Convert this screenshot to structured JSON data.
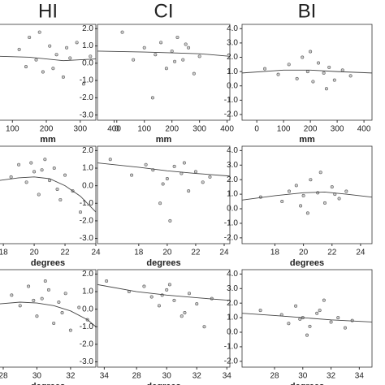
{
  "chart_data": [
    {
      "type": "scatter",
      "title": "HI",
      "x_label": "mm",
      "xlim": [
        61,
        346
      ],
      "xticks": [
        100,
        200,
        300,
        400
      ],
      "ylim": [
        -3.3,
        2.25
      ],
      "x": [
        120,
        150,
        170,
        190,
        210,
        230,
        250,
        270,
        290,
        310,
        330,
        180,
        220,
        260,
        140
      ],
      "values": [
        0.8,
        1.5,
        0.2,
        -0.5,
        1.0,
        0.5,
        -0.8,
        0.3,
        1.2,
        -1.2,
        0.4,
        1.8,
        -0.3,
        0.9,
        -0.2
      ],
      "curve_x": [
        61,
        150,
        250,
        346
      ],
      "curve_values": [
        0.4,
        0.35,
        0.15,
        0.25
      ]
    },
    {
      "type": "scatter",
      "title": "CI",
      "x_label": "mm",
      "xlim": [
        -70,
        410
      ],
      "xticks": [
        0,
        100,
        200,
        300,
        400
      ],
      "ylim": [
        -3.3,
        2.25
      ],
      "yticks": [
        {
          "value": 2,
          "label": "2.0"
        },
        {
          "value": 1,
          "label": "1.0"
        },
        {
          "value": 0,
          "label": "0.0"
        },
        {
          "value": -1,
          "label": "-1.0"
        },
        {
          "value": -2,
          "label": "-2.0"
        },
        {
          "value": -3,
          "label": "-3.0"
        }
      ],
      "x": [
        20,
        60,
        100,
        140,
        160,
        180,
        200,
        220,
        240,
        260,
        280,
        300,
        130,
        210,
        250
      ],
      "values": [
        1.8,
        0.2,
        0.9,
        0.5,
        1.2,
        -0.3,
        0.7,
        1.5,
        0.2,
        0.9,
        -0.6,
        0.4,
        -2.0,
        0.1,
        1.1
      ],
      "curve_x": [
        -70,
        100,
        200,
        300,
        410
      ],
      "curve_values": [
        0.7,
        0.65,
        0.6,
        0.55,
        0.4
      ]
    },
    {
      "type": "scatter",
      "title": "BI",
      "x_label": "mm",
      "xlim": [
        -55,
        430
      ],
      "xticks": [
        0,
        100,
        200,
        300,
        400
      ],
      "ylim": [
        -2.4,
        4.3
      ],
      "yticks": [
        {
          "value": 4,
          "label": "4.0"
        },
        {
          "value": 3,
          "label": "3.0"
        },
        {
          "value": 2,
          "label": "2.0"
        },
        {
          "value": 1,
          "label": "1.0"
        },
        {
          "value": 0,
          "label": "0.0"
        },
        {
          "value": -1,
          "label": "-1.0"
        },
        {
          "value": -2,
          "label": "-2.0"
        }
      ],
      "x": [
        30,
        80,
        120,
        150,
        170,
        190,
        210,
        230,
        250,
        270,
        290,
        320,
        350,
        200,
        260
      ],
      "values": [
        1.2,
        0.8,
        1.5,
        0.5,
        2.0,
        1.0,
        0.3,
        1.6,
        0.9,
        1.3,
        0.4,
        1.1,
        0.7,
        2.4,
        -0.2
      ],
      "curve_x": [
        -55,
        100,
        200,
        300,
        430
      ],
      "curve_values": [
        0.9,
        1.1,
        1.1,
        1.0,
        0.9
      ]
    },
    {
      "type": "scatter",
      "x_label": "degrees",
      "xlim": [
        17.73,
        24.0
      ],
      "xticks": [
        18,
        20,
        22,
        24
      ],
      "ylim": [
        -3.3,
        2.25
      ],
      "x": [
        18.5,
        19,
        19.5,
        20,
        20.3,
        20.7,
        21,
        21.3,
        21.7,
        22,
        22.5,
        23,
        20.5,
        21.5,
        19.8
      ],
      "values": [
        0.5,
        1.2,
        0.2,
        0.8,
        -0.5,
        1.5,
        0.3,
        1.0,
        -0.8,
        0.6,
        -0.3,
        -1.5,
        0.9,
        -0.2,
        1.3
      ],
      "curve_x": [
        17.73,
        19,
        20,
        21,
        22,
        23,
        24
      ],
      "curve_values": [
        0.3,
        0.45,
        0.5,
        0.4,
        0,
        -0.6,
        -1.5
      ]
    },
    {
      "type": "scatter",
      "x_label": "degrees",
      "xlim": [
        15.1,
        24.4
      ],
      "xticks": [
        18,
        20,
        22,
        24
      ],
      "ylim": [
        -3.3,
        2.25
      ],
      "yticks": [
        {
          "value": 2,
          "label": "2.0"
        },
        {
          "value": 1,
          "label": "1.0"
        },
        {
          "value": 0,
          "label": "0.0"
        },
        {
          "value": -1,
          "label": "-1.0"
        },
        {
          "value": -2,
          "label": "-2.0"
        },
        {
          "value": -3,
          "label": "-3.0"
        }
      ],
      "x": [
        16,
        17.5,
        18.5,
        19,
        19.5,
        20,
        20.5,
        21,
        21.5,
        22,
        22.5,
        23,
        20.2,
        21.2,
        19.7
      ],
      "values": [
        1.5,
        0.6,
        1.2,
        0.9,
        -1.0,
        0.4,
        1.1,
        0.7,
        -0.3,
        0.8,
        0.2,
        0.5,
        -2.0,
        1.3,
        0.1
      ],
      "curve_x": [
        15.1,
        18,
        20,
        22,
        24.4
      ],
      "curve_values": [
        1.3,
        1.05,
        0.85,
        0.7,
        0.55
      ]
    },
    {
      "type": "scatter",
      "x_label": "degrees",
      "xlim": [
        15.7,
        24.8
      ],
      "xticks": [
        18,
        20,
        22,
        24
      ],
      "ylim": [
        -2.4,
        4.3
      ],
      "yticks": [
        {
          "value": 4,
          "label": "4.0"
        },
        {
          "value": 3,
          "label": "3.0"
        },
        {
          "value": 2,
          "label": "2.0"
        },
        {
          "value": 1,
          "label": "1.0"
        },
        {
          "value": 0,
          "label": "0.0"
        },
        {
          "value": -1,
          "label": "-1.0"
        },
        {
          "value": -2,
          "label": "-2.0"
        }
      ],
      "x": [
        17,
        18.5,
        19,
        19.5,
        20,
        20.5,
        21,
        21.5,
        22,
        22.5,
        23,
        20.3,
        21.2,
        19.8,
        22.2
      ],
      "values": [
        0.8,
        0.5,
        1.2,
        1.6,
        0.9,
        2.0,
        1.1,
        0.4,
        1.5,
        0.7,
        1.2,
        -0.3,
        2.5,
        0.2,
        1.0
      ],
      "curve_x": [
        15.7,
        18,
        20,
        21.5,
        23,
        24.8
      ],
      "curve_values": [
        0.6,
        0.9,
        1.1,
        1.15,
        1.0,
        0.8
      ]
    },
    {
      "type": "scatter",
      "x_label": "degrees",
      "xlim": [
        27.76,
        33.5
      ],
      "xticks": [
        28,
        30,
        32,
        34
      ],
      "ylim": [
        -3.3,
        2.25
      ],
      "x": [
        28.5,
        29,
        29.5,
        30,
        30.3,
        30.7,
        31,
        31.3,
        31.7,
        32,
        32.5,
        33,
        30.5,
        31.5,
        29.8
      ],
      "values": [
        0.8,
        0.2,
        1.3,
        -0.4,
        0.6,
        1.1,
        -0.8,
        0.4,
        0.9,
        -1.2,
        0.1,
        -0.6,
        1.6,
        -0.2,
        0.5
      ],
      "curve_x": [
        27.76,
        29,
        30,
        31,
        32,
        33,
        33.5
      ],
      "curve_values": [
        0.3,
        0.4,
        0.35,
        0.2,
        -0.1,
        -0.6,
        -1.0
      ]
    },
    {
      "type": "scatter",
      "x_label": "degrees",
      "xlim": [
        25.4,
        34.2
      ],
      "xticks": [
        28,
        30,
        32,
        34
      ],
      "ylim": [
        -3.3,
        2.25
      ],
      "yticks": [
        {
          "value": 2,
          "label": "2.0"
        },
        {
          "value": 1,
          "label": "1.0"
        },
        {
          "value": 0,
          "label": "0.0"
        },
        {
          "value": -1,
          "label": "-1.0"
        },
        {
          "value": -2,
          "label": "-2.0"
        },
        {
          "value": -3,
          "label": "-3.0"
        }
      ],
      "x": [
        26,
        27.5,
        28.5,
        29,
        29.5,
        30,
        30.5,
        31,
        31.5,
        32,
        32.5,
        33,
        30.2,
        31.2,
        29.7
      ],
      "values": [
        1.6,
        1.0,
        1.3,
        0.7,
        0.2,
        1.1,
        0.5,
        -0.4,
        0.9,
        0.3,
        -1.0,
        0.6,
        1.4,
        -0.2,
        0.8
      ],
      "curve_x": [
        25.4,
        28,
        30,
        32,
        34.2
      ],
      "curve_values": [
        1.4,
        1.0,
        0.8,
        0.65,
        0.5
      ]
    },
    {
      "type": "scatter",
      "x_label": "degrees",
      "xlim": [
        25.7,
        34.9
      ],
      "xticks": [
        28,
        30,
        32,
        34
      ],
      "ylim": [
        -2.4,
        4.3
      ],
      "yticks": [
        {
          "value": 4,
          "label": "4.0"
        },
        {
          "value": 3,
          "label": "3.0"
        },
        {
          "value": 2,
          "label": "2.0"
        },
        {
          "value": 1,
          "label": "1.0"
        },
        {
          "value": 0,
          "label": "0.0"
        },
        {
          "value": -1,
          "label": "-1.0"
        },
        {
          "value": -2,
          "label": "-2.0"
        }
      ],
      "x": [
        27,
        28.5,
        29,
        29.5,
        30,
        30.5,
        31,
        31.5,
        32,
        32.5,
        33,
        30.3,
        31.2,
        29.8,
        33.5
      ],
      "values": [
        1.5,
        1.2,
        0.6,
        1.8,
        1.0,
        0.4,
        1.3,
        2.2,
        0.7,
        1.0,
        0.3,
        -0.2,
        1.5,
        0.9,
        0.8
      ],
      "curve_x": [
        25.7,
        28,
        30,
        32,
        34.9
      ],
      "curve_values": [
        1.3,
        1.15,
        1.0,
        0.85,
        0.7
      ]
    }
  ]
}
